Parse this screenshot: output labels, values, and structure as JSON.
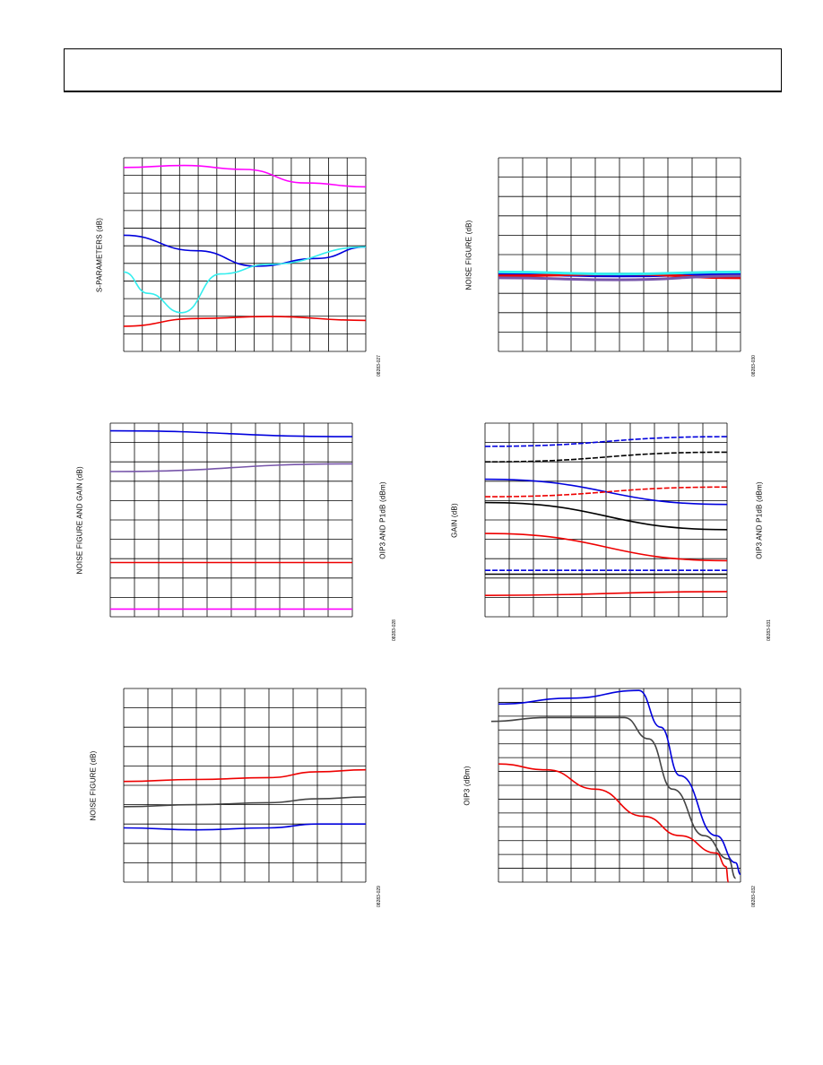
{
  "colors": {
    "magenta": "#ff00ff",
    "blue": "#0000dd",
    "cyan": "#33eeee",
    "red": "#ee0000",
    "purple": "#7755aa",
    "black": "#000000",
    "gray": "#444444",
    "grid": "#000000"
  },
  "chart_data": [
    {
      "type": "line",
      "ylabel": "S-PARAMETERS (dB)",
      "figure_id": "08283-027",
      "grid_x": 13,
      "grid_y": 11,
      "series": [
        {
          "color": "magenta",
          "values": [
            [
              0,
              0.05
            ],
            [
              0.25,
              0.04
            ],
            [
              0.5,
              0.06
            ],
            [
              0.75,
              0.13
            ],
            [
              1,
              0.15
            ]
          ],
          "scale": "frac"
        },
        {
          "color": "blue",
          "values": [
            [
              0,
              0.4
            ],
            [
              0.3,
              0.48
            ],
            [
              0.55,
              0.56
            ],
            [
              0.8,
              0.52
            ],
            [
              1,
              0.46
            ]
          ],
          "scale": "frac"
        },
        {
          "color": "cyan",
          "values": [
            [
              0,
              0.59
            ],
            [
              0.1,
              0.7
            ],
            [
              0.24,
              0.8
            ],
            [
              0.4,
              0.6
            ],
            [
              0.6,
              0.55
            ],
            [
              1,
              0.46
            ]
          ],
          "scale": "frac"
        },
        {
          "color": "red",
          "values": [
            [
              0,
              0.87
            ],
            [
              0.3,
              0.83
            ],
            [
              0.6,
              0.82
            ],
            [
              1,
              0.84
            ]
          ],
          "scale": "frac"
        }
      ]
    },
    {
      "type": "line",
      "ylabel": "NOISE FIGURE (dB)",
      "figure_id": "08283-030",
      "grid_x": 10,
      "grid_y": 10,
      "series": [
        {
          "color": "blue",
          "values": [
            [
              0,
              0.6
            ],
            [
              0.5,
              0.61
            ],
            [
              1,
              0.6
            ]
          ],
          "scale": "frac"
        },
        {
          "color": "red",
          "values": [
            [
              0,
              0.61
            ],
            [
              0.5,
              0.6
            ],
            [
              1,
              0.62
            ]
          ],
          "scale": "frac"
        },
        {
          "color": "cyan",
          "values": [
            [
              0,
              0.59
            ],
            [
              0.5,
              0.6
            ],
            [
              1,
              0.59
            ]
          ],
          "scale": "frac"
        },
        {
          "color": "purple",
          "values": [
            [
              0,
              0.62
            ],
            [
              0.5,
              0.63
            ],
            [
              1,
              0.61
            ]
          ],
          "scale": "frac"
        }
      ]
    },
    {
      "type": "line",
      "ylabel": "NOISE FIGURE AND GAIN (dB)",
      "ylabel_right": "OIP3 AND P1dB (dBm)",
      "figure_id": "08283-028",
      "grid_x": 10,
      "grid_y": 10,
      "series": [
        {
          "color": "blue",
          "values": [
            [
              0,
              0.04
            ],
            [
              1,
              0.07
            ]
          ],
          "scale": "frac"
        },
        {
          "color": "purple",
          "values": [
            [
              0,
              0.25
            ],
            [
              1,
              0.21
            ]
          ],
          "scale": "frac"
        },
        {
          "color": "red",
          "values": [
            [
              0,
              0.72
            ],
            [
              1,
              0.72
            ]
          ],
          "scale": "frac"
        },
        {
          "color": "magenta",
          "values": [
            [
              0,
              0.96
            ],
            [
              1,
              0.96
            ]
          ],
          "scale": "frac"
        }
      ]
    },
    {
      "type": "line",
      "ylabel": "GAIN (dB)",
      "ylabel_right": "OIP3 AND P1dB (dBm)",
      "figure_id": "08283-031",
      "grid_x": 10,
      "grid_y": 10,
      "series": [
        {
          "color": "blue",
          "dash": true,
          "values": [
            [
              0,
              0.12
            ],
            [
              1,
              0.07
            ]
          ],
          "scale": "frac"
        },
        {
          "color": "black",
          "dash": true,
          "values": [
            [
              0,
              0.2
            ],
            [
              1,
              0.15
            ]
          ],
          "scale": "frac"
        },
        {
          "color": "blue",
          "values": [
            [
              0,
              0.29
            ],
            [
              1,
              0.42
            ]
          ],
          "scale": "frac"
        },
        {
          "color": "red",
          "dash": true,
          "values": [
            [
              0,
              0.38
            ],
            [
              1,
              0.33
            ]
          ],
          "scale": "frac"
        },
        {
          "color": "black",
          "values": [
            [
              0,
              0.41
            ],
            [
              1,
              0.55
            ]
          ],
          "scale": "frac"
        },
        {
          "color": "red",
          "values": [
            [
              0,
              0.57
            ],
            [
              1,
              0.71
            ]
          ],
          "scale": "frac"
        },
        {
          "color": "blue",
          "dash": true,
          "values": [
            [
              0,
              0.76
            ],
            [
              1,
              0.76
            ]
          ],
          "scale": "frac"
        },
        {
          "color": "black",
          "values": [
            [
              0,
              0.78
            ],
            [
              1,
              0.78
            ]
          ],
          "scale": "frac"
        },
        {
          "color": "red",
          "values": [
            [
              0,
              0.89
            ],
            [
              1,
              0.87
            ]
          ],
          "scale": "frac"
        }
      ]
    },
    {
      "type": "line",
      "ylabel": "NOISE FIGURE (dB)",
      "figure_id": "08283-029",
      "grid_x": 10,
      "grid_y": 10,
      "series": [
        {
          "color": "red",
          "values": [
            [
              0,
              0.48
            ],
            [
              0.3,
              0.47
            ],
            [
              0.6,
              0.46
            ],
            [
              0.8,
              0.43
            ],
            [
              1,
              0.42
            ]
          ],
          "scale": "frac"
        },
        {
          "color": "gray",
          "values": [
            [
              0,
              0.61
            ],
            [
              0.3,
              0.6
            ],
            [
              0.6,
              0.59
            ],
            [
              0.8,
              0.57
            ],
            [
              1,
              0.56
            ]
          ],
          "scale": "frac"
        },
        {
          "color": "blue",
          "values": [
            [
              0,
              0.72
            ],
            [
              0.3,
              0.73
            ],
            [
              0.6,
              0.72
            ],
            [
              0.8,
              0.7
            ],
            [
              1,
              0.7
            ]
          ],
          "scale": "frac"
        }
      ]
    },
    {
      "type": "line",
      "ylabel": "OIP3 (dBm)",
      "figure_id": "08283-032",
      "grid_x": 10,
      "grid_y": 14,
      "series": [
        {
          "color": "blue",
          "values": [
            [
              0,
              0.08
            ],
            [
              0.3,
              0.05
            ],
            [
              0.58,
              0.01
            ],
            [
              0.67,
              0.2
            ],
            [
              0.75,
              0.45
            ],
            [
              0.9,
              0.76
            ],
            [
              0.98,
              0.9
            ],
            [
              1,
              0.96
            ]
          ],
          "scale": "frac"
        },
        {
          "color": "gray",
          "values": [
            [
              -0.03,
              0.17
            ],
            [
              0.2,
              0.15
            ],
            [
              0.52,
              0.15
            ],
            [
              0.62,
              0.26
            ],
            [
              0.72,
              0.52
            ],
            [
              0.85,
              0.76
            ],
            [
              0.95,
              0.88
            ],
            [
              0.98,
              0.98
            ]
          ],
          "scale": "frac"
        },
        {
          "color": "red",
          "values": [
            [
              0,
              0.39
            ],
            [
              0.2,
              0.42
            ],
            [
              0.4,
              0.52
            ],
            [
              0.6,
              0.66
            ],
            [
              0.75,
              0.76
            ],
            [
              0.9,
              0.85
            ],
            [
              0.94,
              0.92
            ],
            [
              0.95,
              1.0
            ]
          ],
          "scale": "frac"
        }
      ]
    }
  ]
}
